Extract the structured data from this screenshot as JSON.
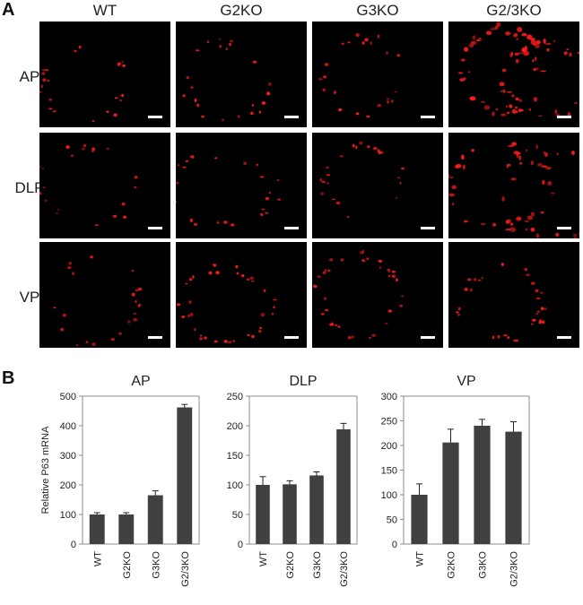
{
  "panel_a": {
    "letter": "A",
    "columns": [
      "WT",
      "G2KO",
      "G3KO",
      "G2/3KO"
    ],
    "rows": [
      "AP",
      "DLP",
      "VP"
    ],
    "signal_color": "#ff1a1a",
    "relative_signal": [
      [
        1,
        1,
        1,
        4
      ],
      [
        1,
        1,
        1,
        3
      ],
      [
        1,
        1.6,
        1.7,
        1.6
      ]
    ]
  },
  "panel_b": {
    "letter": "B"
  },
  "chart_data": [
    {
      "type": "bar",
      "title": "AP",
      "ylabel": "Relative P63 mRNA",
      "xlabel": "",
      "categories": [
        "WT",
        "G2KO",
        "G3KO",
        "G2/3KO"
      ],
      "values": [
        100,
        100,
        165,
        462
      ],
      "errors": [
        6,
        6,
        15,
        10
      ],
      "ylim": [
        0,
        500
      ],
      "yticks": [
        0,
        100,
        200,
        300,
        400,
        500
      ],
      "bar_color": "#404040",
      "grid": false
    },
    {
      "type": "bar",
      "title": "DLP",
      "ylabel": "",
      "xlabel": "",
      "categories": [
        "WT",
        "G2KO",
        "G3KO",
        "G2/3KO"
      ],
      "values": [
        100,
        101,
        116,
        194
      ],
      "errors": [
        14,
        6,
        6,
        10
      ],
      "ylim": [
        0,
        250
      ],
      "yticks": [
        0,
        50,
        100,
        150,
        200,
        250
      ],
      "bar_color": "#404040",
      "grid": false
    },
    {
      "type": "bar",
      "title": "VP",
      "ylabel": "",
      "xlabel": "",
      "categories": [
        "WT",
        "G2KO",
        "G3KO",
        "G2/3KO"
      ],
      "values": [
        100,
        206,
        240,
        228
      ],
      "errors": [
        22,
        27,
        13,
        20
      ],
      "ylim": [
        0,
        300
      ],
      "yticks": [
        0,
        50,
        100,
        150,
        200,
        250,
        300
      ],
      "bar_color": "#404040",
      "grid": false
    }
  ]
}
